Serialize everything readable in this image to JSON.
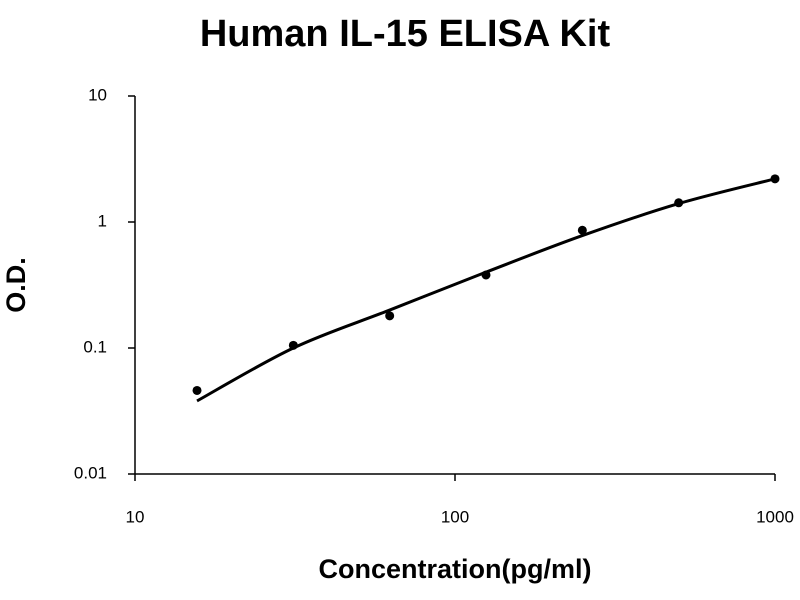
{
  "chart_data": {
    "type": "scatter",
    "title": "Human IL-15 ELISA Kit",
    "x_label": "Concentration(pg/ml)",
    "y_label": "O.D.",
    "x": [
      15.625,
      31.25,
      62.5,
      125,
      250,
      500,
      1000
    ],
    "series": [
      {
        "mode": "markers",
        "color": "#000000",
        "values": [
          0.046,
          0.105,
          0.18,
          0.38,
          0.86,
          1.42,
          2.2
        ]
      },
      {
        "mode": "line",
        "color": "#000000",
        "values": [
          0.038,
          0.1,
          0.2,
          0.4,
          0.78,
          1.4,
          2.2
        ]
      }
    ],
    "x_log": true,
    "y_log": true,
    "xlim": [
      10,
      1000
    ],
    "xticks": [
      10,
      100,
      1000
    ],
    "ylim": [
      0.01,
      10
    ],
    "yticks": [
      0.01,
      0.1,
      1,
      10
    ],
    "grid": false
  }
}
